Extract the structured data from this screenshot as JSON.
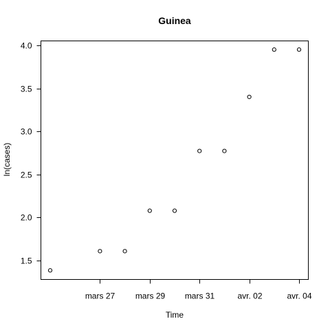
{
  "chart_data": {
    "type": "scatter",
    "title": "Guinea",
    "xlabel": "Time",
    "ylabel": "ln(cases)",
    "x": [
      "2014-03-25",
      "2014-03-27",
      "2014-03-28",
      "2014-03-29",
      "2014-03-30",
      "2014-03-31",
      "2014-04-01",
      "2014-04-02",
      "2014-04-03",
      "2014-04-04"
    ],
    "y": [
      1.386,
      1.609,
      1.609,
      2.079,
      2.079,
      2.773,
      2.773,
      3.401,
      3.951,
      3.951
    ],
    "xlim": [
      "2014-03-25",
      "2014-04-04"
    ],
    "ylim": [
      1.5,
      4.0
    ],
    "x_ticks": [
      {
        "date": "2014-03-27",
        "label": "mars 27"
      },
      {
        "date": "2014-03-29",
        "label": "mars 29"
      },
      {
        "date": "2014-03-31",
        "label": "mars 31"
      },
      {
        "date": "2014-04-02",
        "label": "avr. 02"
      },
      {
        "date": "2014-04-04",
        "label": "avr. 04"
      }
    ],
    "y_ticks": [
      {
        "value": 1.5,
        "label": "1.5"
      },
      {
        "value": 2.0,
        "label": "2.0"
      },
      {
        "value": 2.5,
        "label": "2.5"
      },
      {
        "value": 3.0,
        "label": "3.0"
      },
      {
        "value": 3.5,
        "label": "3.5"
      },
      {
        "value": 4.0,
        "label": "4.0"
      }
    ],
    "grid": false,
    "marker": "open-circle",
    "color": "#000000"
  }
}
